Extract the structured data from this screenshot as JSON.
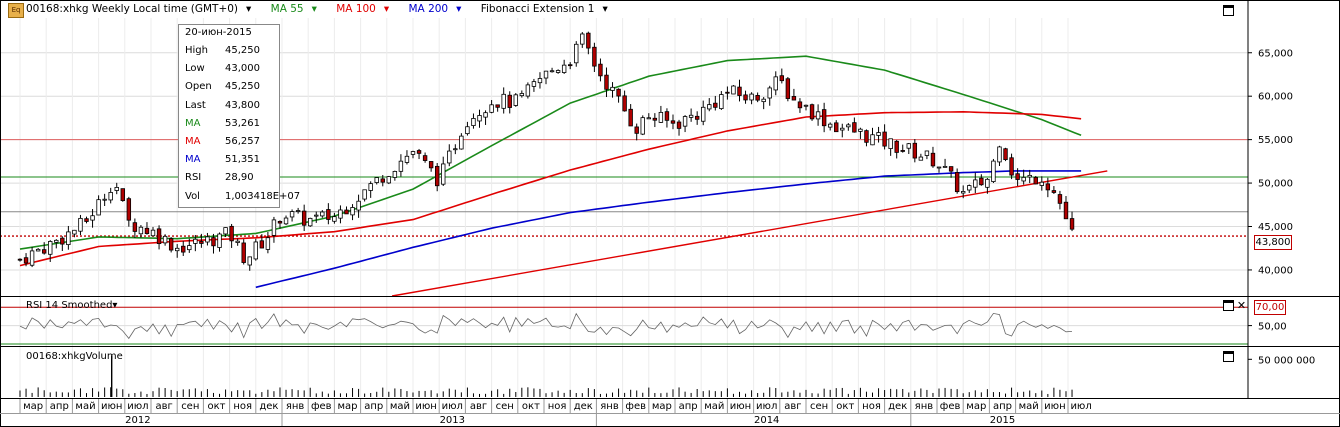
{
  "header": {
    "icon_label": "Eq",
    "symbol": "00168:xhkg Weekly Local time (GMT+0)",
    "ma55": "MA 55",
    "ma100": "MA 100",
    "ma200": "MA 200",
    "fib": "Fibonacci Extension 1",
    "dropdown_glyph": "▾",
    "colors": {
      "ma55": "#1a8a1a",
      "ma100": "#e00000",
      "ma200": "#0000cc"
    }
  },
  "tooltip": {
    "date": "20-июн-2015",
    "rows": [
      {
        "label": "High",
        "value": "45,250",
        "color": "#000000"
      },
      {
        "label": "Low",
        "value": "43,000",
        "color": "#000000"
      },
      {
        "label": "Open",
        "value": "45,250",
        "color": "#000000"
      },
      {
        "label": "Last",
        "value": "43,800",
        "color": "#000000"
      },
      {
        "label": "MA",
        "value": "53,261",
        "color": "#1a8a1a"
      },
      {
        "label": "MA",
        "value": "56,257",
        "color": "#e00000"
      },
      {
        "label": "MA",
        "value": "51,351",
        "color": "#0000cc"
      },
      {
        "label": "RSI",
        "value": "28,90",
        "color": "#000000"
      },
      {
        "label": "Vol",
        "value": "1,003418E+07",
        "color": "#000000"
      }
    ]
  },
  "rsi_panel": {
    "title": "RSI 14 Smoothed",
    "overbought_label": "70,00",
    "mid_label": "50,00"
  },
  "volume_panel": {
    "title": "00168:xhkgVolume",
    "scale_label": "50 000 000"
  },
  "last_price_label": "43,800",
  "chart_data": {
    "type": "candlestick",
    "interval": "weekly",
    "price_axis": {
      "ticks": [
        "40,000",
        "45,000",
        "50,000",
        "55,000",
        "60,000",
        "65,000"
      ],
      "ylim": [
        37000,
        69000
      ]
    },
    "months": [
      "мар",
      "апр",
      "май",
      "июн",
      "июл",
      "авг",
      "сен",
      "окт",
      "ноя",
      "дек",
      "янв",
      "фев",
      "мар",
      "апр",
      "май",
      "июн",
      "июл",
      "авг",
      "сен",
      "окт",
      "ноя",
      "дек",
      "янв",
      "фев",
      "мар",
      "апр",
      "май",
      "июн",
      "июл",
      "авг",
      "сен",
      "окт",
      "ноя",
      "дек",
      "янв",
      "фев",
      "мар",
      "апр",
      "май",
      "июн",
      "июл"
    ],
    "years": [
      {
        "label": "2012",
        "month_index": 4.5
      },
      {
        "label": "2013",
        "month_index": 16.5
      },
      {
        "label": "2014",
        "month_index": 28.5
      },
      {
        "label": "2015",
        "month_index": 37.5
      }
    ],
    "close_path": [
      [
        0,
        41200
      ],
      [
        1.5,
        43500
      ],
      [
        2.5,
        45500
      ],
      [
        3.2,
        48500
      ],
      [
        3.6,
        50500
      ],
      [
        4.1,
        45500
      ],
      [
        5,
        44500
      ],
      [
        6,
        42600
      ],
      [
        7,
        43200
      ],
      [
        8,
        44200
      ],
      [
        8.6,
        41300
      ],
      [
        9.4,
        43700
      ],
      [
        10,
        46500
      ],
      [
        11,
        45700
      ],
      [
        12,
        46200
      ],
      [
        13,
        48700
      ],
      [
        14,
        51300
      ],
      [
        15,
        53700
      ],
      [
        16,
        50300
      ],
      [
        17,
        57200
      ],
      [
        18,
        59500
      ],
      [
        19,
        59300
      ],
      [
        20,
        62400
      ],
      [
        21,
        64300
      ],
      [
        21.5,
        66600
      ],
      [
        22,
        63200
      ],
      [
        22.8,
        59700
      ],
      [
        23.5,
        56300
      ],
      [
        24,
        57700
      ],
      [
        25,
        56800
      ],
      [
        26,
        58200
      ],
      [
        27,
        60500
      ],
      [
        28,
        59700
      ],
      [
        29,
        61800
      ],
      [
        29.5,
        59600
      ],
      [
        30,
        58700
      ],
      [
        31,
        56700
      ],
      [
        32,
        55800
      ],
      [
        33,
        54700
      ],
      [
        34,
        53700
      ],
      [
        35,
        52500
      ],
      [
        36,
        48800
      ],
      [
        37,
        50600
      ],
      [
        37.4,
        55200
      ],
      [
        38,
        50200
      ],
      [
        39,
        50800
      ],
      [
        39.6,
        48400
      ],
      [
        40.2,
        43800
      ]
    ],
    "ma55": [
      [
        0,
        42400
      ],
      [
        3,
        43800
      ],
      [
        6,
        43600
      ],
      [
        9,
        44200
      ],
      [
        12,
        46200
      ],
      [
        15,
        49300
      ],
      [
        18,
        54300
      ],
      [
        21,
        59200
      ],
      [
        24,
        62300
      ],
      [
        27,
        64100
      ],
      [
        30,
        64600
      ],
      [
        33,
        63000
      ],
      [
        36,
        60200
      ],
      [
        39,
        57300
      ],
      [
        40.5,
        55500
      ]
    ],
    "ma100": [
      [
        0,
        40500
      ],
      [
        3,
        42700
      ],
      [
        6,
        43300
      ],
      [
        9,
        43700
      ],
      [
        12,
        44400
      ],
      [
        15,
        45800
      ],
      [
        18,
        48700
      ],
      [
        21,
        51500
      ],
      [
        24,
        53900
      ],
      [
        27,
        56000
      ],
      [
        30,
        57600
      ],
      [
        33,
        58100
      ],
      [
        36,
        58200
      ],
      [
        39,
        57900
      ],
      [
        40.5,
        57400
      ]
    ],
    "ma200": [
      [
        9,
        38000
      ],
      [
        12,
        40200
      ],
      [
        15,
        42600
      ],
      [
        18,
        44800
      ],
      [
        21,
        46600
      ],
      [
        24,
        47800
      ],
      [
        27,
        48900
      ],
      [
        30,
        49900
      ],
      [
        33,
        50800
      ],
      [
        36,
        51200
      ],
      [
        38,
        51400
      ],
      [
        40.5,
        51400
      ]
    ],
    "fib_trendline": [
      [
        14.2,
        37000
      ],
      [
        41.5,
        51400
      ]
    ],
    "fib_levels": [
      55000,
      50700,
      46700,
      43900
    ],
    "rsi": {
      "ylim": [
        30,
        80
      ],
      "overbought": 70,
      "oversold": 30
    },
    "volume": {
      "ylim": [
        0,
        65000000
      ],
      "spike": {
        "month_index": 3.5,
        "value": 55000000
      }
    }
  }
}
